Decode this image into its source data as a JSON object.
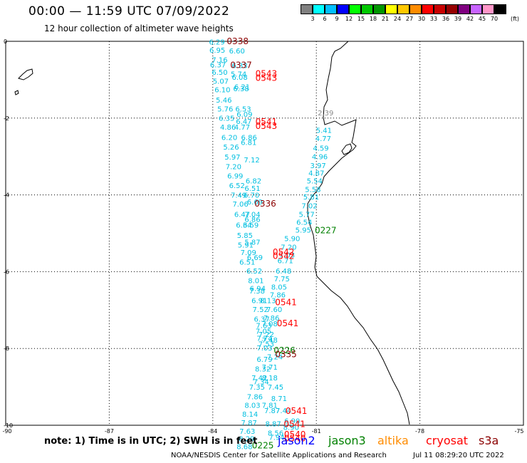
{
  "header": {
    "title": "00:00 — 11:59 UTC 07/09/2022",
    "subtitle": "12 hour collection of altimeter wave heights"
  },
  "colorbar": {
    "colors": [
      "#808080",
      "#00ffff",
      "#00bfff",
      "#0000ff",
      "#00ff00",
      "#00c800",
      "#009600",
      "#ffff00",
      "#ffc800",
      "#ff8c00",
      "#ff0000",
      "#c80000",
      "#960000",
      "#800080",
      "#c864ff",
      "#ff96c8",
      "#000000"
    ],
    "labels": [
      "3",
      "6",
      "9",
      "12",
      "15",
      "18",
      "21",
      "24",
      "27",
      "30",
      "33",
      "36",
      "39",
      "42",
      "45",
      "70"
    ],
    "unit": "(ft)"
  },
  "axes": {
    "y_ticks": [
      "0",
      "-2",
      "-4",
      "-6",
      "-8",
      "-10"
    ],
    "x_ticks": [
      "-90",
      "-87",
      "-84",
      "-81",
      "-78",
      "-75"
    ]
  },
  "swh_labels": [
    {
      "t": "6.29",
      "lon": -83.88,
      "lat": -0.08,
      "c": "#00bfe0"
    },
    {
      "t": "6.95",
      "lon": -83.87,
      "lat": -0.3,
      "c": "#00bfe0"
    },
    {
      "t": "6.60",
      "lon": -83.3,
      "lat": -0.32,
      "c": "#00bfe0"
    },
    {
      "t": "7.16",
      "lon": -83.8,
      "lat": -0.55,
      "c": "#00bfe0"
    },
    {
      "t": "6.37",
      "lon": -83.85,
      "lat": -0.68,
      "c": "#00bfe0"
    },
    {
      "t": "6.33",
      "lon": -83.22,
      "lat": -0.7,
      "c": "#00bfe0"
    },
    {
      "t": "6.50",
      "lon": -83.8,
      "lat": -0.87,
      "c": "#00bfe0"
    },
    {
      "t": "5.74",
      "lon": -83.25,
      "lat": -0.92,
      "c": "#00bfe0"
    },
    {
      "t": "6.08",
      "lon": -83.22,
      "lat": -1.0,
      "c": "#00bfe0"
    },
    {
      "t": "5.07",
      "lon": -83.77,
      "lat": -1.1,
      "c": "#00bfe0"
    },
    {
      "t": "6.21",
      "lon": -83.15,
      "lat": -1.25,
      "c": "#00bfe0"
    },
    {
      "t": "6.10",
      "lon": -83.72,
      "lat": -1.33,
      "c": "#00bfe0"
    },
    {
      "t": "6.38",
      "lon": -83.18,
      "lat": -1.3,
      "c": "#00bfe0"
    },
    {
      "t": "5.46",
      "lon": -83.68,
      "lat": -1.6,
      "c": "#00bfe0"
    },
    {
      "t": "5.76",
      "lon": -83.64,
      "lat": -1.83,
      "c": "#00bfe0"
    },
    {
      "t": "6.53",
      "lon": -83.12,
      "lat": -1.83,
      "c": "#00bfe0"
    },
    {
      "t": "6.09",
      "lon": -83.08,
      "lat": -1.97,
      "c": "#00bfe0"
    },
    {
      "t": "6.35",
      "lon": -83.6,
      "lat": -2.07,
      "c": "#00bfe0"
    },
    {
      "t": "6.47",
      "lon": -83.1,
      "lat": -2.15,
      "c": "#00bfe0"
    },
    {
      "t": "4.86",
      "lon": -83.56,
      "lat": -2.3,
      "c": "#00bfe0"
    },
    {
      "t": "4.77",
      "lon": -83.15,
      "lat": -2.3,
      "c": "#00bfe0"
    },
    {
      "t": "6.20",
      "lon": -83.52,
      "lat": -2.57,
      "c": "#00bfe0"
    },
    {
      "t": "6.86",
      "lon": -82.95,
      "lat": -2.57,
      "c": "#00bfe0"
    },
    {
      "t": "6.81",
      "lon": -82.96,
      "lat": -2.7,
      "c": "#00bfe0"
    },
    {
      "t": "5.26",
      "lon": -83.47,
      "lat": -2.82,
      "c": "#00bfe0"
    },
    {
      "t": "5.97",
      "lon": -83.43,
      "lat": -3.08,
      "c": "#00bfe0"
    },
    {
      "t": "7.12",
      "lon": -82.87,
      "lat": -3.15,
      "c": "#00bfe0"
    },
    {
      "t": "7.20",
      "lon": -83.4,
      "lat": -3.33,
      "c": "#00bfe0"
    },
    {
      "t": "6.99",
      "lon": -83.35,
      "lat": -3.57,
      "c": "#00bfe0"
    },
    {
      "t": "6.82",
      "lon": -82.82,
      "lat": -3.7,
      "c": "#00bfe0"
    },
    {
      "t": "6.52",
      "lon": -83.3,
      "lat": -3.82,
      "c": "#00bfe0"
    },
    {
      "t": "6.51",
      "lon": -82.85,
      "lat": -3.9,
      "c": "#00bfe0"
    },
    {
      "t": "7.49",
      "lon": -83.25,
      "lat": -4.07,
      "c": "#00bfe0"
    },
    {
      "t": "6.70",
      "lon": -82.88,
      "lat": -4.07,
      "c": "#00bfe0"
    },
    {
      "t": "7.06",
      "lon": -83.2,
      "lat": -4.3,
      "c": "#00bfe0"
    },
    {
      "t": "6.69",
      "lon": -82.78,
      "lat": -4.25,
      "c": "#00bfe0"
    },
    {
      "t": "6.47",
      "lon": -83.15,
      "lat": -4.57,
      "c": "#00bfe0"
    },
    {
      "t": "7.04",
      "lon": -82.85,
      "lat": -4.57,
      "c": "#00bfe0"
    },
    {
      "t": "6.86",
      "lon": -82.85,
      "lat": -4.7,
      "c": "#00bfe0"
    },
    {
      "t": "6.59",
      "lon": -82.9,
      "lat": -4.85,
      "c": "#00bfe0"
    },
    {
      "t": "6.34",
      "lon": -83.1,
      "lat": -4.85,
      "c": "#00bfe0"
    },
    {
      "t": "5.85",
      "lon": -83.07,
      "lat": -5.12,
      "c": "#00bfe0"
    },
    {
      "t": "5.87",
      "lon": -82.85,
      "lat": -5.3,
      "c": "#00bfe0"
    },
    {
      "t": "5.91",
      "lon": -83.05,
      "lat": -5.37,
      "c": "#00bfe0"
    },
    {
      "t": "7.09",
      "lon": -82.97,
      "lat": -5.57,
      "c": "#00bfe0"
    },
    {
      "t": "6.69",
      "lon": -82.78,
      "lat": -5.7,
      "c": "#00bfe0"
    },
    {
      "t": "6.51",
      "lon": -83.0,
      "lat": -5.82,
      "c": "#00bfe0"
    },
    {
      "t": "6.52",
      "lon": -82.8,
      "lat": -6.05,
      "c": "#00bfe0"
    },
    {
      "t": "8.01",
      "lon": -82.75,
      "lat": -6.3,
      "c": "#00bfe0"
    },
    {
      "t": "6.94",
      "lon": -82.7,
      "lat": -6.5,
      "c": "#00bfe0"
    },
    {
      "t": "7.38",
      "lon": -82.72,
      "lat": -6.57,
      "c": "#00bfe0"
    },
    {
      "t": "6.91",
      "lon": -82.65,
      "lat": -6.82,
      "c": "#00bfe0"
    },
    {
      "t": "8.13",
      "lon": -82.4,
      "lat": -6.82,
      "c": "#00bfe0"
    },
    {
      "t": "7.52",
      "lon": -82.62,
      "lat": -7.05,
      "c": "#00bfe0"
    },
    {
      "t": "7.60",
      "lon": -82.22,
      "lat": -7.05,
      "c": "#00bfe0"
    },
    {
      "t": "6.37",
      "lon": -82.58,
      "lat": -7.3,
      "c": "#00bfe0"
    },
    {
      "t": "7.86",
      "lon": -82.3,
      "lat": -7.27,
      "c": "#00bfe0"
    },
    {
      "t": "7.63",
      "lon": -82.52,
      "lat": -7.47,
      "c": "#00bfe0"
    },
    {
      "t": "7.08",
      "lon": -82.35,
      "lat": -7.42,
      "c": "#00bfe0"
    },
    {
      "t": "7.05",
      "lon": -82.53,
      "lat": -7.62,
      "c": "#00bfe0"
    },
    {
      "t": "7.22",
      "lon": -82.45,
      "lat": -7.7,
      "c": "#00bfe0"
    },
    {
      "t": "7.74",
      "lon": -82.5,
      "lat": -7.8,
      "c": "#00bfe0"
    },
    {
      "t": "7.48",
      "lon": -82.35,
      "lat": -7.85,
      "c": "#00bfe0"
    },
    {
      "t": "7.53",
      "lon": -82.45,
      "lat": -7.95,
      "c": "#00bfe0"
    },
    {
      "t": "7.03",
      "lon": -82.5,
      "lat": -8.05,
      "c": "#00bfe0"
    },
    {
      "t": "7.24",
      "lon": -82.2,
      "lat": -8.28,
      "c": "#00bfe0"
    },
    {
      "t": "6.79",
      "lon": -82.5,
      "lat": -8.35,
      "c": "#00bfe0"
    },
    {
      "t": "8.32",
      "lon": -82.55,
      "lat": -8.6,
      "c": "#00bfe0"
    },
    {
      "t": "7.71",
      "lon": -82.35,
      "lat": -8.55,
      "c": "#00bfe0"
    },
    {
      "t": "7.42",
      "lon": -82.65,
      "lat": -8.83,
      "c": "#00bfe0"
    },
    {
      "t": "8.18",
      "lon": -82.35,
      "lat": -8.83,
      "c": "#00bfe0"
    },
    {
      "t": "7.34",
      "lon": -82.6,
      "lat": -8.93,
      "c": "#00bfe0"
    },
    {
      "t": "7.35",
      "lon": -82.72,
      "lat": -9.07,
      "c": "#00bfe0"
    },
    {
      "t": "7.45",
      "lon": -82.18,
      "lat": -9.07,
      "c": "#00bfe0"
    },
    {
      "t": "7.86",
      "lon": -82.78,
      "lat": -9.32,
      "c": "#00bfe0"
    },
    {
      "t": "8.71",
      "lon": -82.08,
      "lat": -9.37,
      "c": "#00bfe0"
    },
    {
      "t": "8.03",
      "lon": -82.85,
      "lat": -9.55,
      "c": "#00bfe0"
    },
    {
      "t": "7.81",
      "lon": -82.35,
      "lat": -9.55,
      "c": "#00bfe0"
    },
    {
      "t": "7.87",
      "lon": -82.28,
      "lat": -9.68,
      "c": "#00bfe0"
    },
    {
      "t": "7.44",
      "lon": -81.95,
      "lat": -9.68,
      "c": "#00bfe0"
    },
    {
      "t": "8.14",
      "lon": -82.92,
      "lat": -9.78,
      "c": "#00bfe0"
    },
    {
      "t": "6.90",
      "lon": -81.7,
      "lat": -9.95,
      "c": "#00bfe0"
    },
    {
      "t": "7.87",
      "lon": -82.95,
      "lat": -10.0,
      "c": "#00bfe0"
    },
    {
      "t": "8.87",
      "lon": -82.25,
      "lat": -10.03,
      "c": "#00bfe0"
    },
    {
      "t": "8.90",
      "lon": -81.73,
      "lat": -10.12,
      "c": "#00bfe0"
    },
    {
      "t": "7.63",
      "lon": -83.0,
      "lat": -10.22,
      "c": "#00bfe0"
    },
    {
      "t": "8.56",
      "lon": -82.18,
      "lat": -10.27,
      "c": "#00bfe0"
    },
    {
      "t": "8.29",
      "lon": -83.02,
      "lat": -10.42,
      "c": "#00bfe0"
    },
    {
      "t": "7.94",
      "lon": -82.15,
      "lat": -10.38,
      "c": "#00bfe0"
    },
    {
      "t": "8.68",
      "lon": -83.08,
      "lat": -10.62,
      "c": "#00bfe0"
    },
    {
      "t": "5.41",
      "lon": -80.78,
      "lat": -2.38,
      "c": "#00bfe0"
    },
    {
      "t": "4.77",
      "lon": -80.8,
      "lat": -2.6,
      "c": "#00bfe0"
    },
    {
      "t": "4.59",
      "lon": -80.87,
      "lat": -2.85,
      "c": "#00bfe0"
    },
    {
      "t": "4.96",
      "lon": -80.9,
      "lat": -3.07,
      "c": "#00bfe0"
    },
    {
      "t": "3.97",
      "lon": -80.95,
      "lat": -3.3,
      "c": "#00bfe0"
    },
    {
      "t": "4.87",
      "lon": -81.0,
      "lat": -3.5,
      "c": "#00bfe0"
    },
    {
      "t": "5.54",
      "lon": -81.05,
      "lat": -3.7,
      "c": "#00bfe0"
    },
    {
      "t": "5.58",
      "lon": -81.1,
      "lat": -3.92,
      "c": "#00bfe0"
    },
    {
      "t": "5.81",
      "lon": -81.15,
      "lat": -4.12,
      "c": "#00bfe0"
    },
    {
      "t": "7.02",
      "lon": -81.2,
      "lat": -4.35,
      "c": "#00bfe0"
    },
    {
      "t": "5.77",
      "lon": -81.28,
      "lat": -4.57,
      "c": "#00bfe0"
    },
    {
      "t": "6.54",
      "lon": -81.35,
      "lat": -4.78,
      "c": "#00bfe0"
    },
    {
      "t": "5.95",
      "lon": -81.38,
      "lat": -4.98,
      "c": "#00bfe0"
    },
    {
      "t": "5.90",
      "lon": -81.7,
      "lat": -5.2,
      "c": "#00bfe0"
    },
    {
      "t": "7.20",
      "lon": -81.8,
      "lat": -5.43,
      "c": "#00bfe0"
    },
    {
      "t": "7.03",
      "lon": -81.85,
      "lat": -5.63,
      "c": "#00bfe0"
    },
    {
      "t": "6.71",
      "lon": -81.9,
      "lat": -5.78,
      "c": "#00bfe0"
    },
    {
      "t": "6.48",
      "lon": -81.95,
      "lat": -6.05,
      "c": "#00bfe0"
    },
    {
      "t": "7.75",
      "lon": -82.0,
      "lat": -6.25,
      "c": "#00bfe0"
    },
    {
      "t": "8.05",
      "lon": -82.08,
      "lat": -6.47,
      "c": "#00bfe0"
    },
    {
      "t": "7.86",
      "lon": -82.12,
      "lat": -6.67,
      "c": "#00bfe0"
    },
    {
      "t": "2.39",
      "lon": -80.73,
      "lat": -1.93,
      "c": "#8a8a8a"
    },
    {
      "t": "0338",
      "lon": -83.28,
      "lat": -0.07,
      "c": "#8b0000"
    },
    {
      "t": "0337",
      "lon": -83.18,
      "lat": -0.7,
      "c": "#8b0000"
    },
    {
      "t": "0543",
      "lon": -82.45,
      "lat": -0.92,
      "c": "#ff0000"
    },
    {
      "t": "0543",
      "lon": -82.45,
      "lat": -1.03,
      "c": "#ff0000"
    },
    {
      "t": "0541",
      "lon": -82.45,
      "lat": -2.17,
      "c": "#ff0000"
    },
    {
      "t": "0543",
      "lon": -82.45,
      "lat": -2.28,
      "c": "#ff0000"
    },
    {
      "t": "0336",
      "lon": -82.48,
      "lat": -4.3,
      "c": "#8b0000"
    },
    {
      "t": "0227",
      "lon": -80.73,
      "lat": -5.0,
      "c": "#008000"
    },
    {
      "t": "0542",
      "lon": -81.95,
      "lat": -5.57,
      "c": "#ff0000"
    },
    {
      "t": "0542",
      "lon": -81.95,
      "lat": -5.67,
      "c": "#ff0000"
    },
    {
      "t": "0541",
      "lon": -81.88,
      "lat": -6.87,
      "c": "#ff0000"
    },
    {
      "t": "0541",
      "lon": -81.83,
      "lat": -7.42,
      "c": "#ff0000"
    },
    {
      "t": "0226",
      "lon": -81.92,
      "lat": -8.13,
      "c": "#008000"
    },
    {
      "t": "0335",
      "lon": -81.88,
      "lat": -8.23,
      "c": "#8b0000"
    },
    {
      "t": "0541",
      "lon": -81.58,
      "lat": -9.7,
      "c": "#ff0000"
    },
    {
      "t": "0541",
      "lon": -81.63,
      "lat": -10.05,
      "c": "#ff0000"
    },
    {
      "t": "0540",
      "lon": -81.62,
      "lat": -10.32,
      "c": "#ff0000"
    },
    {
      "t": "0540",
      "lon": -81.62,
      "lat": -10.42,
      "c": "#ff0000"
    },
    {
      "t": "0225",
      "lon": -82.55,
      "lat": -10.6,
      "c": "#008000"
    }
  ],
  "footer": {
    "note": "note: 1) Time is in UTC; 2) SWH is in feet",
    "legend": [
      {
        "label": "jason2",
        "color": "#0000ff"
      },
      {
        "label": "jason3",
        "color": "#008000"
      },
      {
        "label": "altika",
        "color": "#ff8c00"
      },
      {
        "label": "cryosat",
        "color": "#ff0000"
      },
      {
        "label": "s3a",
        "color": "#8b0000"
      }
    ],
    "credit": "NOAA/NESDIS Center for Satellite Applications and Research",
    "timestamp": "Jul 11 08:29:20 UTC 2022"
  }
}
